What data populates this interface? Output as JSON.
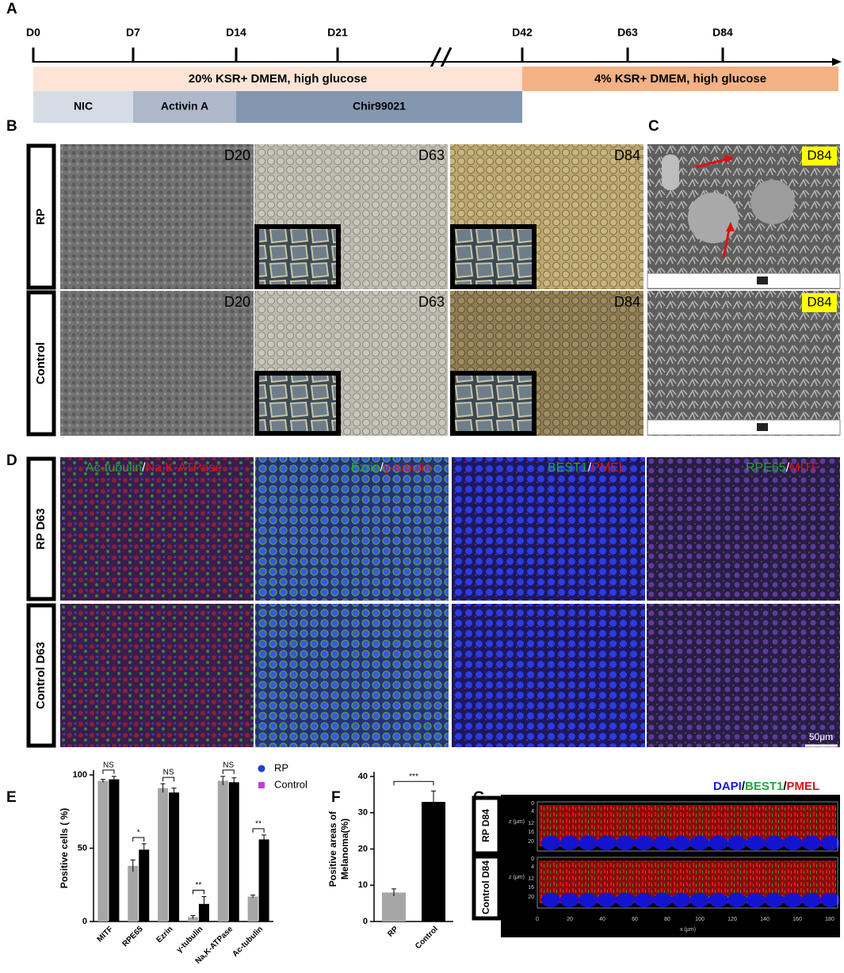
{
  "panel_labels": [
    "A",
    "B",
    "C",
    "D",
    "E",
    "F",
    "G"
  ],
  "panel_a": {
    "days": [
      "D0",
      "D7",
      "D14",
      "D21",
      "D42",
      "D63",
      "D84"
    ],
    "media": [
      "20% KSR+ DMEM, high glucose",
      "4% KSR+ DMEM, high glucose"
    ],
    "factors": [
      "NIC",
      "Activin A",
      "Chir99021"
    ]
  },
  "panel_b": {
    "rows": [
      "RP",
      "Control"
    ],
    "days": [
      "D20",
      "D63",
      "D84"
    ]
  },
  "panel_c": {
    "day": "D84"
  },
  "panel_d": {
    "rows": [
      "RP D63",
      "Control D63"
    ],
    "stains": [
      [
        {
          "text": "Ac-tubulin",
          "color": "#1fa83a"
        },
        {
          "text": "/",
          "color": "#ffffff"
        },
        {
          "text": "Na,K-ATPase",
          "color": "#d01818"
        }
      ],
      [
        {
          "text": "Ezrin",
          "color": "#1fa83a"
        },
        {
          "text": "/",
          "color": "#ffffff"
        },
        {
          "text": "γ-tubulin",
          "color": "#d01818"
        }
      ],
      [
        {
          "text": "BEST1",
          "color": "#1fa83a"
        },
        {
          "text": "/",
          "color": "#ffffff"
        },
        {
          "text": "PMEL",
          "color": "#d01818"
        }
      ],
      [
        {
          "text": "RPE65",
          "color": "#1fa83a"
        },
        {
          "text": "/",
          "color": "#ffffff"
        },
        {
          "text": "MITF",
          "color": "#d01818"
        }
      ]
    ],
    "scale_bar": "50μm"
  },
  "panel_g": {
    "stain": [
      {
        "text": "DAPI",
        "color": "#1a1ae0"
      },
      {
        "text": "/",
        "color": "#000000"
      },
      {
        "text": "BEST1",
        "color": "#1fa83a"
      },
      {
        "text": "/",
        "color": "#000000"
      },
      {
        "text": "PMEL",
        "color": "#d01818"
      }
    ],
    "rows": [
      "RP D84",
      "Control D84"
    ],
    "z_label": "z (μm)",
    "z_ticks": [
      "0",
      "4",
      "12",
      "16",
      "20"
    ],
    "x_label": "x (μm)",
    "x_ticks": [
      "0",
      "20",
      "40",
      "60",
      "80",
      "100",
      "120",
      "140",
      "160",
      "180"
    ]
  },
  "chart_data": [
    {
      "type": "bar",
      "categories": [
        "MITF",
        "RPE65",
        "Ezrin",
        "γ-tubulin",
        "Na,K-ATPase",
        "Ac-tubulin"
      ],
      "series": [
        {
          "name": "RP",
          "color": "#a6a6a6",
          "marker_color": "#1f3fd6",
          "marker": "circle",
          "values": [
            96,
            38,
            91,
            3,
            96,
            17
          ],
          "errors": [
            1,
            4,
            3,
            1,
            3,
            1
          ]
        },
        {
          "name": "Control",
          "color": "#000000",
          "marker_color": "#c13fd1",
          "marker": "square",
          "values": [
            97,
            49,
            88,
            12,
            95,
            56
          ],
          "errors": [
            2,
            4,
            3,
            5,
            3,
            3
          ]
        }
      ],
      "ylabel": "Positive cells ( %)",
      "ylim": [
        0,
        100
      ],
      "yticks": [
        0,
        50,
        100
      ],
      "significance": [
        "NS",
        "*",
        "NS",
        "**",
        "NS",
        "**"
      ],
      "legend": "upper right"
    },
    {
      "type": "bar",
      "categories": [
        "RP",
        "Control"
      ],
      "values": [
        8,
        33
      ],
      "errors": [
        1,
        3
      ],
      "colors": [
        "#a6a6a6",
        "#000000"
      ],
      "marker_colors": [
        "#1f3fd6",
        "#c13fd1"
      ],
      "ylabel": [
        "Positive areas of",
        "Melanoma(%)"
      ],
      "ylim": [
        0,
        40
      ],
      "yticks": [
        0,
        10,
        20,
        30,
        40
      ],
      "significance": [
        "***"
      ]
    }
  ]
}
